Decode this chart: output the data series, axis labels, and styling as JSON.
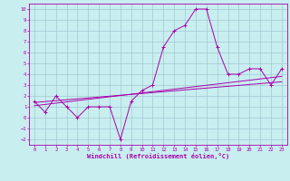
{
  "xlabel": "Windchill (Refroidissement éolien,°C)",
  "background_color": "#c8eef0",
  "grid_color": "#a0c8d0",
  "line_color": "#aa00aa",
  "spine_color": "#aa00aa",
  "xlim": [
    -0.5,
    23.5
  ],
  "ylim": [
    -2.5,
    10.5
  ],
  "x_ticks": [
    0,
    1,
    2,
    3,
    4,
    5,
    6,
    7,
    8,
    9,
    10,
    11,
    12,
    13,
    14,
    15,
    16,
    17,
    18,
    19,
    20,
    21,
    22,
    23
  ],
  "y_ticks": [
    -2,
    -1,
    0,
    1,
    2,
    3,
    4,
    5,
    6,
    7,
    8,
    9,
    10
  ],
  "main_data_x": [
    0,
    1,
    2,
    3,
    4,
    5,
    6,
    7,
    8,
    9,
    10,
    11,
    12,
    13,
    14,
    15,
    16,
    17,
    18,
    19,
    20,
    21,
    22,
    23
  ],
  "main_data_y": [
    1.5,
    0.5,
    2.0,
    1.0,
    0.0,
    1.0,
    1.0,
    1.0,
    -2.0,
    1.5,
    2.5,
    3.0,
    6.5,
    8.0,
    8.5,
    10.0,
    10.0,
    6.5,
    4.0,
    4.0,
    4.5,
    4.5,
    3.0,
    4.5
  ],
  "reg_line1_x": [
    0,
    23
  ],
  "reg_line1_y": [
    1.1,
    3.8
  ],
  "reg_line2_x": [
    0,
    23
  ],
  "reg_line2_y": [
    1.4,
    3.3
  ],
  "tick_fontsize": 4.0,
  "xlabel_fontsize": 5.0,
  "marker_size": 2.5,
  "line_width": 0.7
}
